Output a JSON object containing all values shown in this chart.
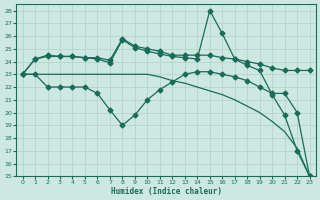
{
  "xlabel": "Humidex (Indice chaleur)",
  "bg_color": "#cce8e0",
  "line_color": "#1a6b5a",
  "grid_color": "#b0d0c8",
  "xlim": [
    -0.5,
    23.5
  ],
  "ylim": [
    15,
    28.5
  ],
  "xticks": [
    0,
    1,
    2,
    3,
    4,
    5,
    6,
    7,
    8,
    9,
    10,
    11,
    12,
    13,
    14,
    15,
    16,
    17,
    18,
    19,
    20,
    21,
    22,
    23
  ],
  "yticks": [
    15,
    16,
    17,
    18,
    19,
    20,
    21,
    22,
    23,
    24,
    25,
    26,
    27,
    28
  ],
  "line1_x": [
    0,
    1,
    2,
    3,
    4,
    5,
    6,
    7,
    8,
    9,
    10,
    11,
    12,
    13,
    14,
    15,
    16,
    17,
    18,
    19,
    20,
    21,
    22,
    23
  ],
  "line1_y": [
    23.0,
    23.0,
    23.0,
    23.0,
    23.0,
    23.0,
    23.0,
    23.0,
    23.0,
    23.0,
    23.0,
    22.8,
    22.5,
    22.3,
    22.0,
    21.7,
    21.4,
    21.0,
    20.5,
    20.0,
    19.3,
    18.5,
    17.2,
    15.0
  ],
  "line2_x": [
    0,
    1,
    2,
    3,
    4,
    5,
    6,
    7,
    8,
    9,
    10,
    11,
    12,
    13,
    14,
    15,
    16,
    17,
    18,
    19,
    20,
    21,
    22,
    23
  ],
  "line2_y": [
    23.0,
    24.2,
    24.5,
    24.4,
    24.4,
    24.3,
    24.3,
    24.1,
    25.8,
    25.2,
    25.0,
    24.8,
    24.5,
    24.5,
    24.5,
    24.5,
    24.3,
    24.2,
    24.0,
    23.8,
    23.5,
    23.3,
    23.3,
    23.3
  ],
  "line3_x": [
    0,
    1,
    2,
    3,
    4,
    5,
    6,
    7,
    8,
    9,
    10,
    11,
    12,
    13,
    14,
    15,
    16,
    17,
    18,
    19,
    20,
    21,
    22,
    23
  ],
  "line3_y": [
    23.0,
    24.2,
    24.4,
    24.4,
    24.4,
    24.3,
    24.2,
    23.9,
    25.7,
    25.1,
    24.8,
    24.6,
    24.4,
    24.3,
    24.2,
    28.0,
    26.2,
    24.2,
    23.7,
    23.3,
    21.4,
    19.8,
    17.0,
    15.0
  ],
  "line4_x": [
    0,
    1,
    2,
    3,
    4,
    5,
    6,
    7,
    8,
    9,
    10,
    11,
    12,
    13,
    14,
    15,
    16,
    17,
    18,
    19,
    20,
    21,
    22,
    23
  ],
  "line4_y": [
    23.0,
    23.0,
    22.0,
    22.0,
    22.0,
    22.0,
    21.5,
    20.2,
    19.0,
    19.8,
    21.0,
    21.8,
    22.4,
    23.0,
    23.2,
    23.2,
    23.0,
    22.8,
    22.5,
    22.0,
    21.5,
    21.5,
    20.0,
    15.0
  ],
  "marker": "D",
  "markersize": 2.5,
  "linewidth": 0.9
}
